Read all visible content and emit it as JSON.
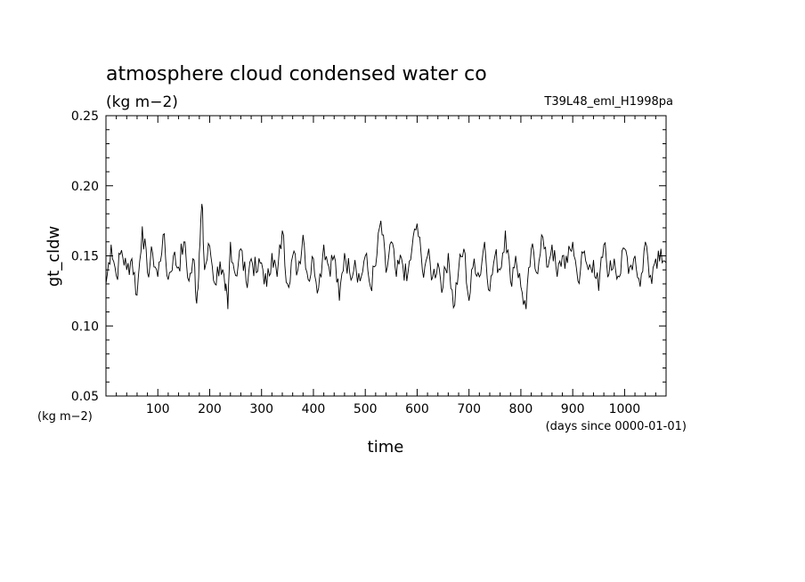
{
  "chart_data": {
    "type": "line",
    "title": "atmosphere cloud condensed water co",
    "units": "(kg m−2)",
    "run_label": "T39L48_eml_H1998pa",
    "ylabel": "gt_cldw",
    "xlabel": "time",
    "x_units": "(days since 0000-01-01)",
    "y_units_corner": "(kg m−2)",
    "xlim": [
      0,
      1080
    ],
    "ylim": [
      0.05,
      0.25
    ],
    "x_ticks": [
      100,
      200,
      300,
      400,
      500,
      600,
      700,
      800,
      900,
      1000
    ],
    "x_tick_labels": [
      "100",
      "200",
      "300",
      "400",
      "500",
      "600",
      "700",
      "800",
      "900",
      "1000"
    ],
    "y_ticks": [
      0.05,
      0.1,
      0.15,
      0.2,
      0.25
    ],
    "y_tick_labels": [
      "0.05",
      "0.10",
      "0.15",
      "0.20",
      "0.25"
    ],
    "series": [
      {
        "color": "#000000",
        "x": [
          0,
          10,
          20,
          30,
          40,
          50,
          60,
          70,
          80,
          90,
          100,
          110,
          120,
          130,
          140,
          150,
          160,
          170,
          175,
          180,
          185,
          190,
          200,
          210,
          220,
          230,
          235,
          240,
          250,
          260,
          270,
          280,
          290,
          300,
          310,
          320,
          330,
          340,
          350,
          360,
          370,
          380,
          390,
          400,
          410,
          420,
          430,
          440,
          450,
          460,
          470,
          480,
          490,
          500,
          510,
          520,
          530,
          540,
          550,
          560,
          570,
          580,
          590,
          600,
          610,
          620,
          630,
          640,
          650,
          660,
          670,
          680,
          690,
          700,
          710,
          720,
          730,
          740,
          750,
          760,
          770,
          780,
          790,
          800,
          810,
          820,
          830,
          840,
          850,
          860,
          870,
          880,
          890,
          900,
          910,
          920,
          930,
          940,
          950,
          960,
          970,
          980,
          990,
          1000,
          1010,
          1020,
          1030,
          1040,
          1050,
          1060,
          1070,
          1080
        ],
        "y": [
          0.13,
          0.158,
          0.136,
          0.154,
          0.14,
          0.148,
          0.122,
          0.171,
          0.138,
          0.152,
          0.135,
          0.165,
          0.133,
          0.15,
          0.142,
          0.16,
          0.132,
          0.147,
          0.116,
          0.152,
          0.187,
          0.14,
          0.157,
          0.13,
          0.146,
          0.125,
          0.112,
          0.16,
          0.136,
          0.155,
          0.132,
          0.148,
          0.138,
          0.145,
          0.128,
          0.152,
          0.135,
          0.168,
          0.13,
          0.15,
          0.14,
          0.165,
          0.133,
          0.148,
          0.127,
          0.158,
          0.142,
          0.15,
          0.118,
          0.152,
          0.138,
          0.147,
          0.132,
          0.15,
          0.128,
          0.143,
          0.175,
          0.138,
          0.16,
          0.135,
          0.148,
          0.132,
          0.155,
          0.173,
          0.14,
          0.15,
          0.135,
          0.145,
          0.128,
          0.152,
          0.113,
          0.14,
          0.155,
          0.118,
          0.148,
          0.135,
          0.16,
          0.125,
          0.15,
          0.14,
          0.168,
          0.132,
          0.15,
          0.128,
          0.112,
          0.155,
          0.138,
          0.165,
          0.142,
          0.158,
          0.135,
          0.15,
          0.145,
          0.16,
          0.132,
          0.152,
          0.14,
          0.147,
          0.125,
          0.158,
          0.137,
          0.148,
          0.135,
          0.155,
          0.142,
          0.15,
          0.128,
          0.16,
          0.136,
          0.148,
          0.155,
          0.145
        ]
      }
    ]
  }
}
